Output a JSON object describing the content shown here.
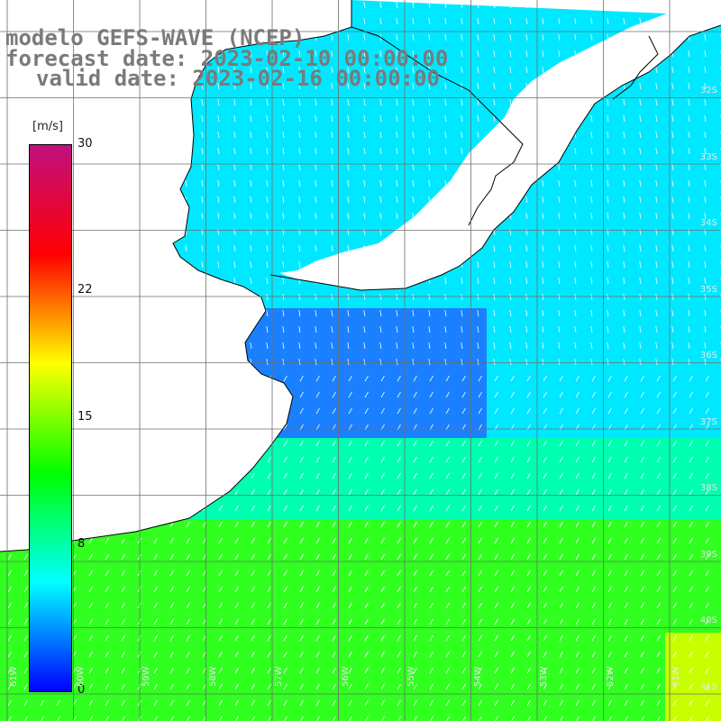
{
  "header": {
    "line1": "modelo GEFS-WAVE (NCEP)",
    "line2": "forecast date: 2023-02-10 00:00:00",
    "line3": "valid date: 2023-02-16 00:00:00"
  },
  "colorbar": {
    "units": "[m/s]",
    "ticks": [
      {
        "label": "30",
        "value": 30
      },
      {
        "label": "22",
        "value": 22
      },
      {
        "label": "15",
        "value": 15
      },
      {
        "label": "8",
        "value": 8
      },
      {
        "label": "0",
        "value": 0
      }
    ],
    "colors": [
      "#0000ff",
      "#00ffff",
      "#00ff00",
      "#ffff00",
      "#ff0000",
      "#c0107f"
    ]
  },
  "axes": {
    "lat_labels": [
      "32S",
      "33S",
      "34S",
      "35S",
      "36S",
      "37S",
      "38S",
      "39S",
      "40S",
      "41S"
    ],
    "lon_labels": [
      "61W",
      "60W",
      "59W",
      "58W",
      "57W",
      "56W",
      "55W",
      "54W",
      "53W",
      "52W",
      "51W"
    ]
  },
  "colors": {
    "land": "#ffffff",
    "grid": "#6e6e6e",
    "coast": "#000000",
    "arrow": "#ffffff"
  }
}
